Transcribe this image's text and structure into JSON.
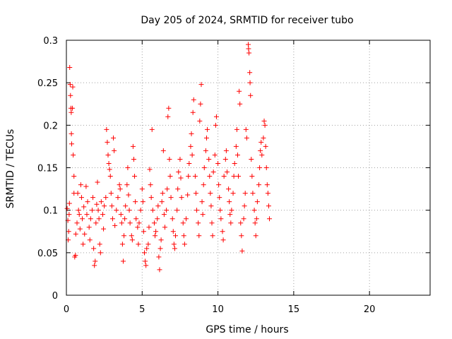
{
  "chart_data": {
    "type": "scatter",
    "title": "Day 205 of 2024, SRMTID for receiver tubo",
    "xlabel": "GPS time / hours",
    "ylabel": "SRMTID / TECUs",
    "xlim": [
      0,
      24
    ],
    "ylim": [
      0,
      0.3
    ],
    "xticks": [
      0,
      5,
      10,
      15,
      20
    ],
    "yticks": [
      0,
      0.05,
      0.1,
      0.15,
      0.2,
      0.25,
      0.3
    ],
    "xtick_labels": [
      "0",
      "5",
      "10",
      "15",
      "20"
    ],
    "ytick_labels": [
      "0",
      "0.05",
      "0.1",
      "0.15",
      "0.2",
      "0.25",
      "0.3"
    ],
    "grid": true,
    "marker": "+",
    "color": "#ff0000",
    "series": [
      {
        "name": "SRMTID",
        "points": [
          [
            0.05,
            0.102
          ],
          [
            0.1,
            0.088
          ],
          [
            0.12,
            0.065
          ],
          [
            0.15,
            0.075
          ],
          [
            0.18,
            0.095
          ],
          [
            0.2,
            0.108
          ],
          [
            0.22,
            0.268
          ],
          [
            0.25,
            0.248
          ],
          [
            0.27,
            0.235
          ],
          [
            0.3,
            0.22
          ],
          [
            0.32,
            0.215
          ],
          [
            0.33,
            0.19
          ],
          [
            0.35,
            0.178
          ],
          [
            0.4,
            0.22
          ],
          [
            0.42,
            0.245
          ],
          [
            0.45,
            0.165
          ],
          [
            0.5,
            0.14
          ],
          [
            0.5,
            0.12
          ],
          [
            0.55,
            0.045
          ],
          [
            0.6,
            0.047
          ],
          [
            0.62,
            0.072
          ],
          [
            0.7,
            0.085
          ],
          [
            0.75,
            0.12
          ],
          [
            0.8,
            0.1
          ],
          [
            0.85,
            0.095
          ],
          [
            0.9,
            0.078
          ],
          [
            0.95,
            0.13
          ],
          [
            1.0,
            0.115
          ],
          [
            1.05,
            0.09
          ],
          [
            1.1,
            0.06
          ],
          [
            1.15,
            0.104
          ],
          [
            1.2,
            0.072
          ],
          [
            1.3,
            0.128
          ],
          [
            1.35,
            0.095
          ],
          [
            1.4,
            0.11
          ],
          [
            1.5,
            0.08
          ],
          [
            1.55,
            0.065
          ],
          [
            1.6,
            0.09
          ],
          [
            1.7,
            0.1
          ],
          [
            1.75,
            0.115
          ],
          [
            1.8,
            0.055
          ],
          [
            1.85,
            0.035
          ],
          [
            1.9,
            0.04
          ],
          [
            1.95,
            0.085
          ],
          [
            2.0,
            0.107
          ],
          [
            2.05,
            0.133
          ],
          [
            2.1,
            0.1
          ],
          [
            2.15,
            0.09
          ],
          [
            2.2,
            0.06
          ],
          [
            2.25,
            0.05
          ],
          [
            2.3,
            0.11
          ],
          [
            2.4,
            0.095
          ],
          [
            2.45,
            0.078
          ],
          [
            2.5,
            0.105
          ],
          [
            2.6,
            0.115
          ],
          [
            2.65,
            0.195
          ],
          [
            2.7,
            0.18
          ],
          [
            2.75,
            0.165
          ],
          [
            2.8,
            0.155
          ],
          [
            2.85,
            0.148
          ],
          [
            2.9,
            0.14
          ],
          [
            2.95,
            0.12
          ],
          [
            3.0,
            0.105
          ],
          [
            3.05,
            0.09
          ],
          [
            3.1,
            0.185
          ],
          [
            3.15,
            0.17
          ],
          [
            3.2,
            0.082
          ],
          [
            3.3,
            0.1
          ],
          [
            3.4,
            0.115
          ],
          [
            3.5,
            0.13
          ],
          [
            3.55,
            0.125
          ],
          [
            3.6,
            0.095
          ],
          [
            3.65,
            0.085
          ],
          [
            3.7,
            0.06
          ],
          [
            3.75,
            0.04
          ],
          [
            3.8,
            0.07
          ],
          [
            3.85,
            0.09
          ],
          [
            3.9,
            0.105
          ],
          [
            4.0,
            0.13
          ],
          [
            4.05,
            0.15
          ],
          [
            4.1,
            0.118
          ],
          [
            4.15,
            0.1
          ],
          [
            4.2,
            0.085
          ],
          [
            4.3,
            0.07
          ],
          [
            4.35,
            0.065
          ],
          [
            4.4,
            0.175
          ],
          [
            4.45,
            0.16
          ],
          [
            4.5,
            0.14
          ],
          [
            4.55,
            0.11
          ],
          [
            4.6,
            0.09
          ],
          [
            4.7,
            0.08
          ],
          [
            4.75,
            0.06
          ],
          [
            4.8,
            0.085
          ],
          [
            4.9,
            0.1
          ],
          [
            5.0,
            0.125
          ],
          [
            5.05,
            0.11
          ],
          [
            5.1,
            0.075
          ],
          [
            5.15,
            0.05
          ],
          [
            5.2,
            0.04
          ],
          [
            5.25,
            0.035
          ],
          [
            5.3,
            0.055
          ],
          [
            5.4,
            0.06
          ],
          [
            5.45,
            0.08
          ],
          [
            5.5,
            0.148
          ],
          [
            5.55,
            0.13
          ],
          [
            5.6,
            0.115
          ],
          [
            5.65,
            0.195
          ],
          [
            5.7,
            0.1
          ],
          [
            5.8,
            0.085
          ],
          [
            5.85,
            0.07
          ],
          [
            5.9,
            0.075
          ],
          [
            6.0,
            0.09
          ],
          [
            6.05,
            0.105
          ],
          [
            6.1,
            0.045
          ],
          [
            6.15,
            0.03
          ],
          [
            6.2,
            0.055
          ],
          [
            6.25,
            0.065
          ],
          [
            6.3,
            0.11
          ],
          [
            6.35,
            0.12
          ],
          [
            6.4,
            0.17
          ],
          [
            6.45,
            0.095
          ],
          [
            6.5,
            0.08
          ],
          [
            6.6,
            0.1
          ],
          [
            6.65,
            0.125
          ],
          [
            6.7,
            0.21
          ],
          [
            6.75,
            0.22
          ],
          [
            6.8,
            0.16
          ],
          [
            6.85,
            0.14
          ],
          [
            6.9,
            0.115
          ],
          [
            7.0,
            0.09
          ],
          [
            7.05,
            0.075
          ],
          [
            7.1,
            0.06
          ],
          [
            7.15,
            0.055
          ],
          [
            7.2,
            0.07
          ],
          [
            7.3,
            0.1
          ],
          [
            7.35,
            0.125
          ],
          [
            7.4,
            0.145
          ],
          [
            7.5,
            0.16
          ],
          [
            7.55,
            0.138
          ],
          [
            7.6,
            0.115
          ],
          [
            7.7,
            0.085
          ],
          [
            7.75,
            0.07
          ],
          [
            7.8,
            0.06
          ],
          [
            7.9,
            0.09
          ],
          [
            8.0,
            0.118
          ],
          [
            8.05,
            0.14
          ],
          [
            8.1,
            0.155
          ],
          [
            8.2,
            0.175
          ],
          [
            8.25,
            0.19
          ],
          [
            8.3,
            0.165
          ],
          [
            8.35,
            0.215
          ],
          [
            8.4,
            0.23
          ],
          [
            8.5,
            0.14
          ],
          [
            8.55,
            0.12
          ],
          [
            8.6,
            0.1
          ],
          [
            8.7,
            0.085
          ],
          [
            8.75,
            0.07
          ],
          [
            8.8,
            0.205
          ],
          [
            8.85,
            0.225
          ],
          [
            8.9,
            0.248
          ],
          [
            8.95,
            0.11
          ],
          [
            9.0,
            0.095
          ],
          [
            9.05,
            0.13
          ],
          [
            9.1,
            0.15
          ],
          [
            9.2,
            0.17
          ],
          [
            9.25,
            0.185
          ],
          [
            9.3,
            0.195
          ],
          [
            9.4,
            0.16
          ],
          [
            9.45,
            0.14
          ],
          [
            9.5,
            0.12
          ],
          [
            9.55,
            0.105
          ],
          [
            9.6,
            0.085
          ],
          [
            9.65,
            0.07
          ],
          [
            9.7,
            0.145
          ],
          [
            9.8,
            0.165
          ],
          [
            9.85,
            0.2
          ],
          [
            9.9,
            0.21
          ],
          [
            10.0,
            0.155
          ],
          [
            10.05,
            0.13
          ],
          [
            10.1,
            0.115
          ],
          [
            10.15,
            0.1
          ],
          [
            10.2,
            0.09
          ],
          [
            10.3,
            0.075
          ],
          [
            10.35,
            0.065
          ],
          [
            10.4,
            0.14
          ],
          [
            10.5,
            0.16
          ],
          [
            10.55,
            0.17
          ],
          [
            10.6,
            0.145
          ],
          [
            10.7,
            0.125
          ],
          [
            10.75,
            0.11
          ],
          [
            10.8,
            0.095
          ],
          [
            10.85,
            0.085
          ],
          [
            10.9,
            0.1
          ],
          [
            11.0,
            0.12
          ],
          [
            11.05,
            0.14
          ],
          [
            11.1,
            0.155
          ],
          [
            11.2,
            0.175
          ],
          [
            11.25,
            0.195
          ],
          [
            11.3,
            0.165
          ],
          [
            11.35,
            0.14
          ],
          [
            11.4,
            0.24
          ],
          [
            11.45,
            0.225
          ],
          [
            11.5,
            0.085
          ],
          [
            11.55,
            0.07
          ],
          [
            11.6,
            0.052
          ],
          [
            11.7,
            0.09
          ],
          [
            11.75,
            0.105
          ],
          [
            11.8,
            0.12
          ],
          [
            11.85,
            0.195
          ],
          [
            11.9,
            0.185
          ],
          [
            12.0,
            0.295
          ],
          [
            12.02,
            0.29
          ],
          [
            12.05,
            0.285
          ],
          [
            12.1,
            0.262
          ],
          [
            12.12,
            0.25
          ],
          [
            12.15,
            0.235
          ],
          [
            12.2,
            0.16
          ],
          [
            12.25,
            0.14
          ],
          [
            12.3,
            0.12
          ],
          [
            12.4,
            0.1
          ],
          [
            12.45,
            0.085
          ],
          [
            12.5,
            0.07
          ],
          [
            12.55,
            0.09
          ],
          [
            12.6,
            0.11
          ],
          [
            12.7,
            0.13
          ],
          [
            12.75,
            0.15
          ],
          [
            12.8,
            0.17
          ],
          [
            12.85,
            0.18
          ],
          [
            12.9,
            0.165
          ],
          [
            13.0,
            0.185
          ],
          [
            13.05,
            0.205
          ],
          [
            13.1,
            0.2
          ],
          [
            13.15,
            0.175
          ],
          [
            13.2,
            0.15
          ],
          [
            13.25,
            0.13
          ],
          [
            13.3,
            0.12
          ],
          [
            13.35,
            0.105
          ],
          [
            13.4,
            0.09
          ]
        ]
      }
    ]
  }
}
